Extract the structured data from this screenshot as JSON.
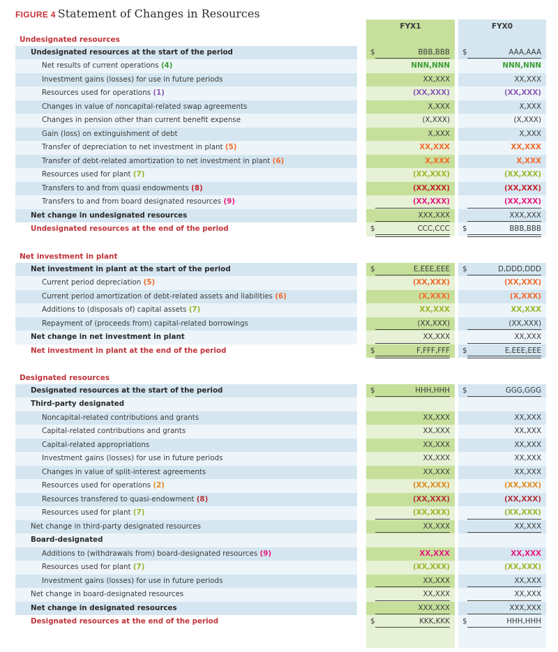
{
  "figure": {
    "label": "FIGURE 4",
    "title": "Statement of Changes in Resources"
  },
  "columns": [
    "FYX1",
    "FYX0"
  ],
  "colors": {
    "green": "#3a9e35",
    "purple": "#8a5bb5",
    "orange": "#f26a2b",
    "olive": "#9cb52a",
    "red": "#c4262e",
    "magenta": "#e6197f",
    "amber": "#e08a1e",
    "darkred": "#b5333a"
  },
  "sections": [
    {
      "title": "Undesignated resources",
      "rows": [
        {
          "label": "Undesignated resources at the start of the period",
          "kind": "start",
          "fyx1": "BBB,BBB",
          "fyx0": "AAA,AAA",
          "dollar": "$",
          "rule": "single"
        },
        {
          "label": "Net results of current operations",
          "ref": "(4)",
          "color": "green",
          "kind": "item",
          "fyx1": "NNN,NNN",
          "fyx0": "NNN,NNN"
        },
        {
          "label": "Investment gains (losses) for use in future periods",
          "kind": "item",
          "fyx1": "XX,XXX",
          "fyx0": "XX,XXX"
        },
        {
          "label": "Resources used for operations",
          "ref": "(1)",
          "color": "purple",
          "kind": "item",
          "fyx1": "(XX,XXX)",
          "fyx0": "(XX,XXX)"
        },
        {
          "label": "Changes in value of noncapital-related swap agreements",
          "kind": "item",
          "fyx1": "X,XXX",
          "fyx0": "X,XXX"
        },
        {
          "label": "Changes in pension other than current benefit expense",
          "kind": "item",
          "fyx1": "(X,XXX)",
          "fyx0": "(X,XXX)"
        },
        {
          "label": "Gain (loss) on extinguishment of debt",
          "kind": "item",
          "fyx1": "X,XXX",
          "fyx0": "X,XXX"
        },
        {
          "label": "Transfer of depreciation to net investment in plant",
          "ref": "(5)",
          "color": "orange",
          "kind": "item",
          "fyx1": "XX,XXX",
          "fyx0": "XX,XXX"
        },
        {
          "label": "Transfer of debt-related amortization to net investment in plant",
          "ref": "(6)",
          "color": "orange",
          "kind": "item",
          "fyx1": "X,XXX",
          "fyx0": "X,XXX"
        },
        {
          "label": "Resources used for plant",
          "ref": "(7)",
          "color": "olive",
          "kind": "item",
          "fyx1": "(XX,XXX)",
          "fyx0": "(XX,XXX)"
        },
        {
          "label": "Transfers to and from quasi endowments",
          "ref": "(8)",
          "color": "red",
          "kind": "item",
          "fyx1": "(XX,XXX)",
          "fyx0": "(XX,XXX)"
        },
        {
          "label": "Transfers to and from board designated resources",
          "ref": "(9)",
          "color": "magenta",
          "kind": "item",
          "fyx1": "(XX,XXX)",
          "fyx0": "(XX,XXX)",
          "rule": "single"
        },
        {
          "label": "Net change in undesignated resources",
          "kind": "total",
          "fyx1": "XXX,XXX",
          "fyx0": "XXX,XXX",
          "rule": "single"
        },
        {
          "label": "Undesignated resources at the end of the period",
          "kind": "end",
          "fyx1": "CCC,CCC",
          "fyx0": "BBB,BBB",
          "dollar": "$",
          "rule": "double"
        }
      ]
    },
    {
      "title": "Net investment in plant",
      "rows": [
        {
          "label": "Net investment in plant at the start of the period",
          "kind": "start",
          "fyx1": "E,EEE,EEE",
          "fyx0": "D,DDD,DDD",
          "dollar": "$",
          "rule": "single"
        },
        {
          "label": "Current period depreciation",
          "ref": "(5)",
          "color": "orange",
          "kind": "item",
          "fyx1": "(XX,XXX)",
          "fyx0": "(XX,XXX)"
        },
        {
          "label": "Current period amortization of debt-related assets and liabilities",
          "ref": "(6)",
          "color": "orange",
          "kind": "item",
          "fyx1": "(X,XXX)",
          "fyx0": "(X,XXX)"
        },
        {
          "label": "Additions to (disposals of) capital assets",
          "ref": "(7)",
          "color": "olive",
          "kind": "item",
          "fyx1": "XX,XXX",
          "fyx0": "XX,XXX"
        },
        {
          "label": "Repayment of (proceeds from) capital-related borrowings",
          "kind": "item",
          "fyx1": "(XX,XXX)",
          "fyx0": "(XX,XXX)",
          "rule": "single"
        },
        {
          "label": "Net change in net investment in plant",
          "kind": "total",
          "fyx1": "XX,XXX",
          "fyx0": "XX,XXX",
          "rule": "single"
        },
        {
          "label": "Net investment in plant at the end of the period",
          "kind": "end",
          "fyx1": "F,FFF,FFF",
          "fyx0": "E,EEE,EEE",
          "dollar": "$",
          "rule": "double"
        }
      ]
    },
    {
      "title": "Designated resources",
      "rows": [
        {
          "label": "Designated resources at the start of the period",
          "kind": "start",
          "fyx1": "HHH,HHH",
          "fyx0": "GGG,GGG",
          "dollar": "$",
          "rule": "single"
        },
        {
          "label": "Third-party designated",
          "kind": "subhead"
        },
        {
          "label": "Noncapital-related contributions and grants",
          "kind": "item",
          "fyx1": "XX,XXX",
          "fyx0": "XX,XXX"
        },
        {
          "label": "Capital-related contributions and grants",
          "kind": "item",
          "fyx1": "XX,XXX",
          "fyx0": "XX,XXX"
        },
        {
          "label": "Capital-related appropriations",
          "kind": "item",
          "fyx1": "XX,XXX",
          "fyx0": "XX,XXX"
        },
        {
          "label": "Investment gains (losses) for use in future periods",
          "kind": "item",
          "fyx1": "XX,XXX",
          "fyx0": "XX,XXX"
        },
        {
          "label": "Changes in value of split-interest agreements",
          "kind": "item",
          "fyx1": "XX,XXX",
          "fyx0": "XX,XXX"
        },
        {
          "label": "Resources used for operations",
          "ref": "(2)",
          "color": "amber",
          "kind": "item",
          "fyx1": "(XX,XXX)",
          "fyx0": "(XX,XXX)"
        },
        {
          "label": "Resources transfered to quasi-endowment",
          "ref": "(8)",
          "color": "darkred",
          "kind": "item",
          "fyx1": "(XX,XXX)",
          "fyx0": "(XX,XXX)"
        },
        {
          "label": "Resources used for plant",
          "ref": "(7)",
          "color": "olive",
          "kind": "item",
          "fyx1": "(XX,XXX)",
          "fyx0": "(XX,XXX)",
          "rule": "single"
        },
        {
          "label": "Net change in third-party designated resources",
          "kind": "subtotal",
          "fyx1": "XX,XXX",
          "fyx0": "XX,XXX",
          "rule": "single"
        },
        {
          "label": "Board-designated",
          "kind": "subhead"
        },
        {
          "label": "Additions to (withdrawals from) board-designated resources",
          "ref": "(9)",
          "color": "magenta",
          "kind": "item",
          "fyx1": "XX,XXX",
          "fyx0": "XX,XXX"
        },
        {
          "label": "Resources used for plant",
          "ref": "(7)",
          "color": "olive",
          "kind": "item",
          "fyx1": "(XX,XXX)",
          "fyx0": "(XX,XXX)"
        },
        {
          "label": "Investment gains (losses) for use in future periods",
          "kind": "item",
          "fyx1": "XX,XXX",
          "fyx0": "XX,XXX",
          "rule": "single"
        },
        {
          "label": "Net change in board-designated resources",
          "kind": "subtotal",
          "fyx1": "XX,XXX",
          "fyx0": "XX,XXX",
          "rule": "single"
        },
        {
          "label": "Net change in designated resources",
          "kind": "total",
          "fyx1": "XXX,XXX",
          "fyx0": "XXX,XXX",
          "rule": "single"
        },
        {
          "label": "Designated resources at the end of the period",
          "kind": "end",
          "fyx1": "KKK,KKK",
          "fyx0": "HHH,HHH",
          "dollar": "$",
          "rule": "double"
        }
      ]
    }
  ]
}
